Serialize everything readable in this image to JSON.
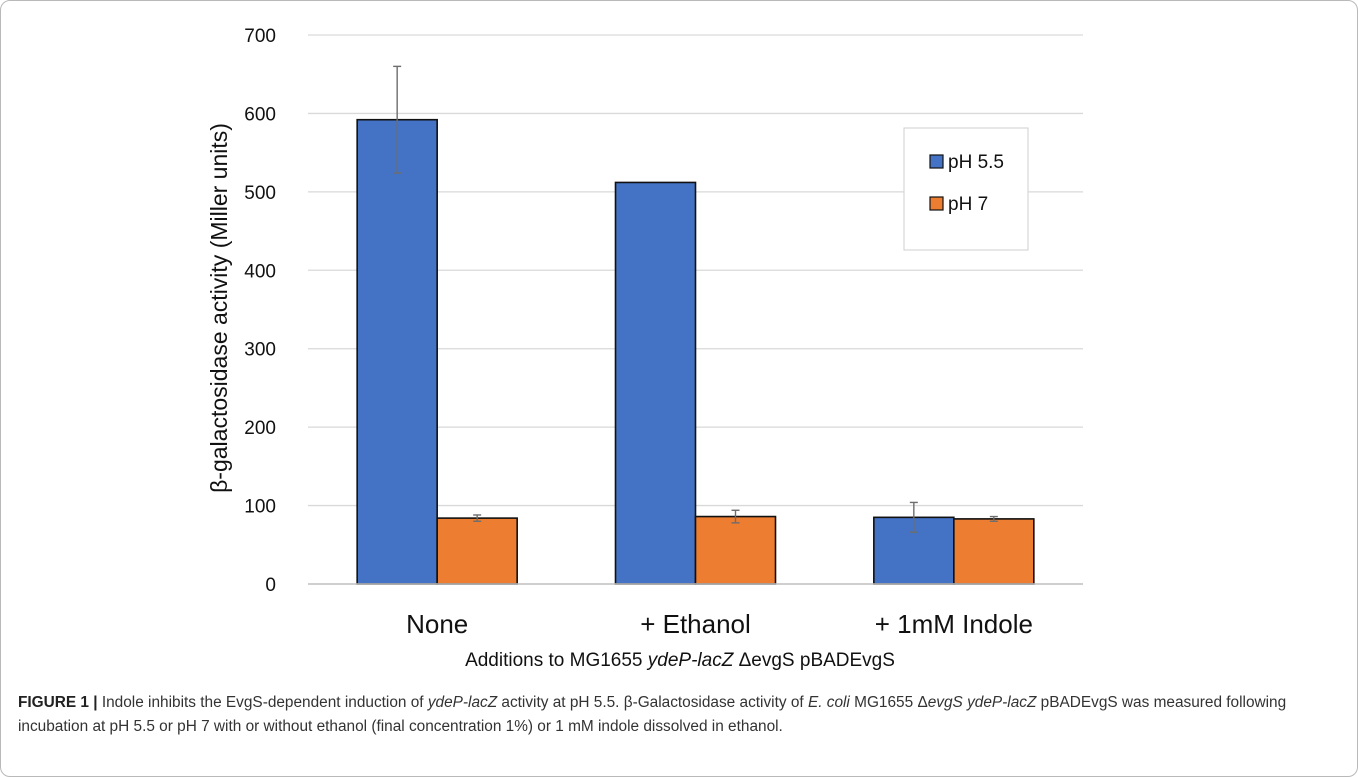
{
  "colors": {
    "series1": "#4472c4",
    "series2": "#ed7d31",
    "grid": "#d9d9d9",
    "axis": "#7f7f7f",
    "errorbar": "#6d6d6d",
    "text": "#111111"
  },
  "chart_data": {
    "type": "bar",
    "title": "",
    "ylabel": "β-galactosidase activity (Miller units)",
    "xlabel_parts": [
      "Additions to MG1655 ",
      "ydeP-lacZ",
      " ΔevgS",
      " pBADEvgS"
    ],
    "categories": [
      "None",
      "+ Ethanol",
      "+ 1mM Indole"
    ],
    "ylim": [
      0,
      700
    ],
    "yticks": [
      0,
      100,
      200,
      300,
      400,
      500,
      600,
      700
    ],
    "grid": true,
    "legend_position": "right",
    "series": [
      {
        "name": "pH 5.5",
        "color": "#4472c4",
        "values": [
          592,
          512,
          85
        ],
        "errors": [
          68,
          0,
          19
        ]
      },
      {
        "name": "pH 7",
        "color": "#ed7d31",
        "values": [
          84,
          86,
          83
        ],
        "errors": [
          4,
          8,
          3
        ]
      }
    ]
  },
  "caption": {
    "label": "FIGURE 1 |",
    "segments": [
      " Indole inhibits the EvgS-dependent induction of ",
      "ydeP-lacZ",
      " activity at pH 5.5. β-Galactosidase activity of ",
      "E. coli",
      " MG1655 Δ",
      "evgS ydeP-lacZ",
      " pBADEvgS was measured following incubation at pH 5.5 or pH 7 with or without ethanol (final concentration 1%) or 1 mM indole dissolved in ethanol."
    ]
  }
}
